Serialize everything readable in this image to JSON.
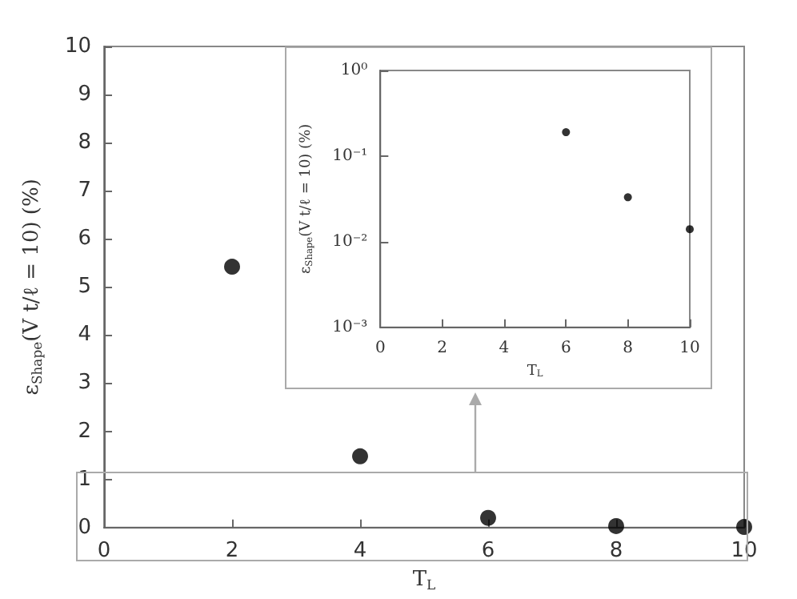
{
  "chart_data": [
    {
      "type": "scatter",
      "xlabel": "T$_{L}$",
      "ylabel": "ε$_{Shape}$(V t/ℓ = 10) (%)",
      "x": [
        2,
        4,
        6,
        8,
        10
      ],
      "values": [
        5.42,
        1.48,
        0.2,
        0.03,
        0.01
      ],
      "color": "#000000",
      "marker": "circle",
      "xlim": [
        0,
        10
      ],
      "xticks": [
        0,
        2,
        4,
        6,
        8,
        10
      ],
      "ylim": [
        0,
        10
      ],
      "yticks": [
        0,
        1,
        2,
        3,
        4,
        5,
        6,
        7,
        8,
        9,
        10
      ]
    },
    {
      "type": "scatter",
      "xlabel": "T$_{L}$",
      "ylabel": "ε$_{Shape}$(V t/ℓ = 10) (%)",
      "x": [
        6,
        8,
        10
      ],
      "values": [
        0.19,
        0.033,
        0.014
      ],
      "color": "#000000",
      "marker": "circle",
      "log": "y",
      "xlim": [
        0,
        10
      ],
      "xticks": [
        0,
        2,
        4,
        6,
        8,
        10
      ],
      "ylim": [
        0.001,
        1
      ],
      "yticks": [
        {
          "value": 0.001,
          "label": "10⁻³"
        },
        {
          "value": 0.01,
          "label": "10⁻²"
        },
        {
          "value": 0.1,
          "label": "10⁻¹"
        },
        {
          "value": 1,
          "label": "10⁰"
        }
      ]
    }
  ]
}
